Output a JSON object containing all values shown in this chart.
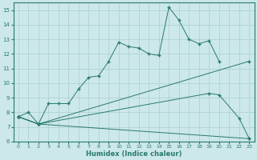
{
  "line1_x": [
    0,
    1,
    2,
    3,
    4,
    5,
    6,
    7,
    8,
    9,
    10,
    11,
    12,
    13,
    14,
    15,
    16,
    17,
    18,
    19,
    20
  ],
  "line1_y": [
    7.7,
    8.0,
    7.2,
    8.6,
    8.6,
    8.6,
    9.6,
    10.4,
    10.5,
    11.5,
    12.8,
    12.5,
    12.4,
    12.0,
    11.9,
    15.2,
    14.3,
    13.0,
    12.7,
    12.9,
    11.5
  ],
  "line2_x": [
    0,
    2,
    23
  ],
  "line2_y": [
    7.7,
    7.2,
    11.5
  ],
  "line3_x": [
    0,
    2,
    19,
    20,
    22,
    23
  ],
  "line3_y": [
    7.7,
    7.2,
    9.3,
    9.2,
    7.6,
    6.2
  ],
  "line4_x": [
    0,
    2,
    23
  ],
  "line4_y": [
    7.7,
    7.2,
    6.2
  ],
  "color": "#2a7a6a",
  "bg_color": "#cce8e8",
  "grid_color": "#aacfcf",
  "xlabel": "Humidex (Indice chaleur)",
  "xlim": [
    -0.5,
    23.5
  ],
  "ylim": [
    6,
    15.5
  ],
  "yticks": [
    6,
    7,
    8,
    9,
    10,
    11,
    12,
    13,
    14,
    15
  ],
  "xticks": [
    0,
    1,
    2,
    3,
    4,
    5,
    6,
    7,
    8,
    9,
    10,
    11,
    12,
    13,
    14,
    15,
    16,
    17,
    18,
    19,
    20,
    21,
    22,
    23
  ]
}
